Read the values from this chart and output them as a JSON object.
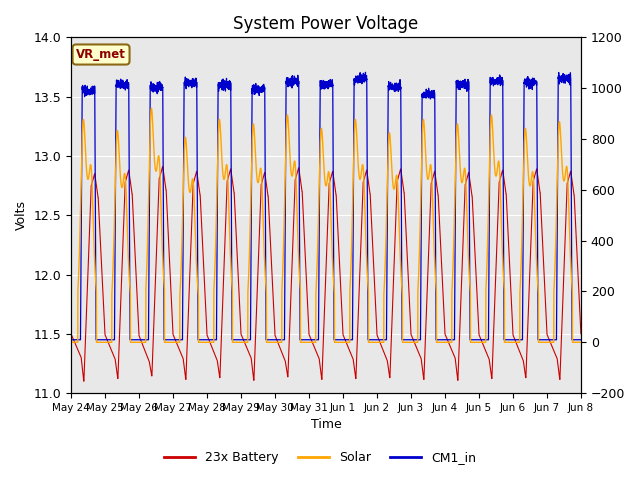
{
  "title": "System Power Voltage",
  "xlabel": "Time",
  "ylabel": "Volts",
  "ylim_left": [
    11.0,
    14.0
  ],
  "ylim_right": [
    -200,
    1200
  ],
  "yticks_left": [
    11.0,
    11.5,
    12.0,
    12.5,
    13.0,
    13.5,
    14.0
  ],
  "yticks_right": [
    -200,
    0,
    200,
    400,
    600,
    800,
    1000,
    1200
  ],
  "x_labels": [
    "May 24",
    "May 25",
    "May 26",
    "May 27",
    "May 28",
    "May 29",
    "May 30",
    "May 31",
    "Jun 1",
    "Jun 2",
    "Jun 3",
    "Jun 4",
    "Jun 5",
    "Jun 6",
    "Jun 7",
    "Jun 8"
  ],
  "annotation_text": "VR_met",
  "fig_color": "#ffffff",
  "plot_bg_color": "#e8e8e8",
  "line_battery_color": "#cc0000",
  "line_solar_color": "#ffa500",
  "line_cm1_color": "#0000cc",
  "legend_labels": [
    "23x Battery",
    "Solar",
    "CM1_in"
  ],
  "title_fontsize": 12,
  "axis_fontsize": 9,
  "n_days": 15,
  "ppd": 288
}
